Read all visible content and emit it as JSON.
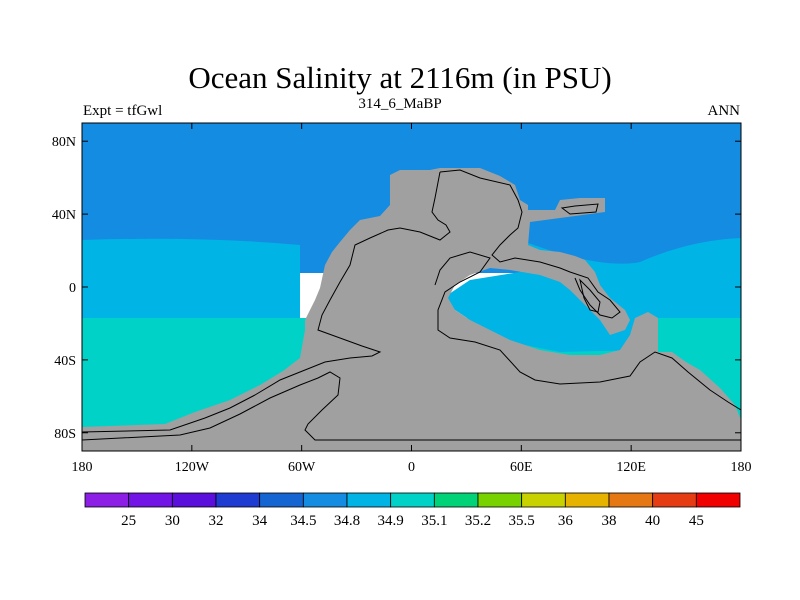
{
  "title": "Ocean Salinity at 2116m (in PSU)",
  "left_label": "Expt = tfGwl",
  "center_label": "314_6_MaBP",
  "right_label": "ANN",
  "map": {
    "x_ticks": [
      "180",
      "120W",
      "60W",
      "0",
      "60E",
      "120E",
      "180"
    ],
    "y_ticks": [
      "80N",
      "40N",
      "0",
      "40S",
      "80S"
    ],
    "land_color": "#a0a0a0"
  },
  "colorbar": {
    "labels": [
      "25",
      "30",
      "32",
      "34",
      "34.5",
      "34.8",
      "34.9",
      "35.1",
      "35.2",
      "35.5",
      "36",
      "38",
      "40",
      "45"
    ],
    "colors": [
      "#8c1ee6",
      "#7314e6",
      "#5a0fdc",
      "#1e3cd2",
      "#1464d2",
      "#148ce1",
      "#00b4e6",
      "#00d2c8",
      "#00d278",
      "#78d200",
      "#c8d200",
      "#e6b400",
      "#e67814",
      "#e63c14",
      "#f00000"
    ]
  },
  "chart_data": {
    "type": "heatmap",
    "title": "Ocean Salinity at 2116m (in PSU)",
    "x_ticks": [
      "180",
      "120W",
      "60W",
      "0",
      "60E",
      "120E",
      "180"
    ],
    "y_ticks": [
      "80N",
      "40N",
      "0",
      "40S",
      "80S"
    ],
    "xlim": [
      -180,
      180
    ],
    "ylim": [
      -90,
      90
    ],
    "levels": [
      25,
      30,
      32,
      34,
      34.5,
      34.8,
      34.9,
      35.1,
      35.2,
      35.5,
      36,
      38,
      40,
      45
    ],
    "regions": [
      {
        "range": "34.5-34.8",
        "area": "northern ocean, north of ~25N"
      },
      {
        "range": "34.8-34.9",
        "area": "tropical ocean, ~25N to ~15S"
      },
      {
        "range": "34.9-35.1",
        "area": "southern ocean, ~15S to ~75S"
      }
    ]
  }
}
